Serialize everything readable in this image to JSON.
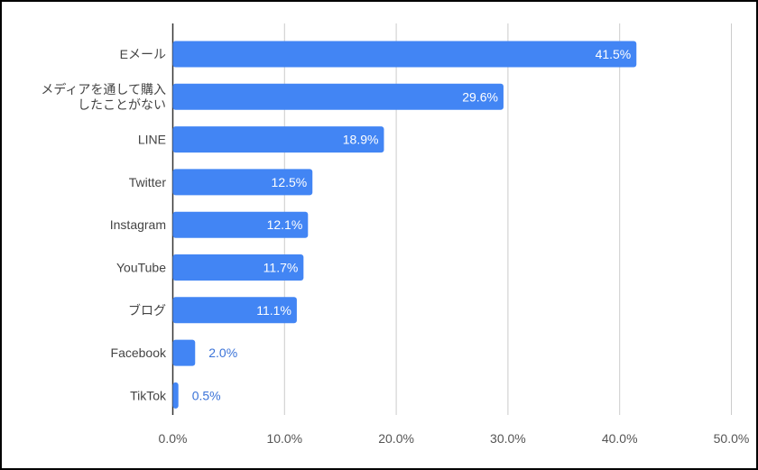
{
  "chart_data": {
    "type": "bar",
    "orientation": "horizontal",
    "categories": [
      [
        "Eメール"
      ],
      [
        "メディアを通して購入",
        "したことがない"
      ],
      [
        "LINE"
      ],
      [
        "Twitter"
      ],
      [
        "Instagram"
      ],
      [
        "YouTube"
      ],
      [
        "ブログ"
      ],
      [
        "Facebook"
      ],
      [
        "TikTok"
      ]
    ],
    "values": [
      41.5,
      29.6,
      18.9,
      12.5,
      12.1,
      11.7,
      11.1,
      2.0,
      0.5
    ],
    "value_labels": [
      "41.5%",
      "29.6%",
      "18.9%",
      "12.5%",
      "12.1%",
      "11.7%",
      "11.1%",
      "2.0%",
      "0.5%"
    ],
    "x_ticks": [
      "0.0%",
      "10.0%",
      "20.0%",
      "30.0%",
      "40.0%",
      "50.0%"
    ],
    "xlim": [
      0,
      50
    ],
    "grid": true,
    "legend": false,
    "bar_color": "#4285f4",
    "inside_label_color": "#ffffff",
    "outside_label_color": "#3b73d8",
    "grid_color": "#cccccc",
    "axis_color": "#333333"
  }
}
